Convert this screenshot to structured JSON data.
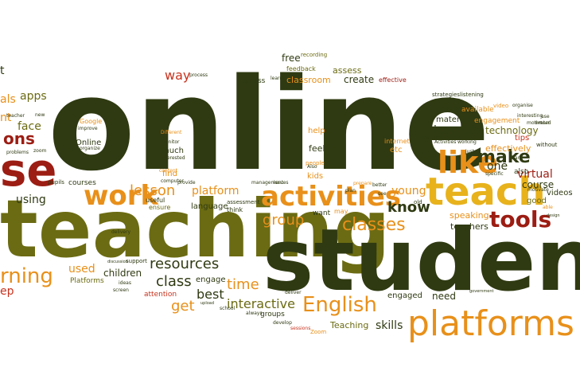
{
  "colors": {
    "dark_olive": "#2f3a12",
    "olive": "#6b6b13",
    "orange": "#e8901a",
    "gold": "#e7b21c",
    "dark_red": "#9c1d13",
    "red": "#c8321d"
  },
  "words": [
    {
      "text": "online",
      "color": "dark_olive"
    },
    {
      "text": "teaching",
      "color": "olive"
    },
    {
      "text": "students",
      "color": "dark_olive"
    },
    {
      "text": "teach",
      "color": "gold"
    },
    {
      "text": "platforms",
      "color": "orange"
    },
    {
      "text": "activities",
      "color": "orange"
    },
    {
      "text": "work",
      "color": "orange"
    },
    {
      "text": "like",
      "color": "orange"
    },
    {
      "text": "tools",
      "color": "dark_red"
    },
    {
      "text": "se",
      "color": "dark_red"
    },
    {
      "text": "ons",
      "color": "dark_red"
    },
    {
      "text": "English",
      "color": "orange"
    },
    {
      "text": "rning",
      "color": "orange"
    },
    {
      "text": "make",
      "color": "dark_olive"
    },
    {
      "text": "classes",
      "color": "orange"
    },
    {
      "text": "lesson",
      "color": "orange"
    },
    {
      "text": "group",
      "color": "orange"
    },
    {
      "text": "know",
      "color": "dark_olive"
    },
    {
      "text": "resources",
      "color": "dark_olive"
    },
    {
      "text": "interactive",
      "color": "olive"
    },
    {
      "text": "class",
      "color": "dark_olive"
    },
    {
      "text": "time",
      "color": "orange"
    },
    {
      "text": "best",
      "color": "dark_olive"
    },
    {
      "text": "get",
      "color": "orange"
    },
    {
      "text": "platform",
      "color": "orange"
    },
    {
      "text": "learners",
      "color": "dark_olive"
    },
    {
      "text": "technology",
      "color": "olive"
    },
    {
      "text": "effectively",
      "color": "orange"
    },
    {
      "text": "course",
      "color": "dark_olive"
    },
    {
      "text": "virtual",
      "color": "dark_red"
    },
    {
      "text": "young",
      "color": "orange"
    },
    {
      "text": "speaking",
      "color": "orange"
    },
    {
      "text": "teachers",
      "color": "dark_olive"
    },
    {
      "text": "skills",
      "color": "dark_olive"
    },
    {
      "text": "Teaching",
      "color": "olive"
    },
    {
      "text": "engaged",
      "color": "dark_olive"
    },
    {
      "text": "need",
      "color": "dark_olive"
    },
    {
      "text": "groups",
      "color": "dark_olive"
    },
    {
      "text": "used",
      "color": "orange"
    },
    {
      "text": "children",
      "color": "dark_olive"
    },
    {
      "text": "engage",
      "color": "dark_olive"
    },
    {
      "text": "attention",
      "color": "red"
    },
    {
      "text": "Platforms",
      "color": "olive"
    },
    {
      "text": "face",
      "color": "olive"
    },
    {
      "text": "apps",
      "color": "olive"
    },
    {
      "text": "nt",
      "color": "orange"
    },
    {
      "text": "als",
      "color": "orange"
    },
    {
      "text": "using",
      "color": "dark_olive"
    },
    {
      "text": "courses",
      "color": "dark_olive"
    },
    {
      "text": "language",
      "color": "dark_olive"
    },
    {
      "text": "find",
      "color": "orange"
    },
    {
      "text": "much",
      "color": "dark_olive"
    },
    {
      "text": "help",
      "color": "orange"
    },
    {
      "text": "feel",
      "color": "dark_olive"
    },
    {
      "text": "kids",
      "color": "orange"
    },
    {
      "text": "etc",
      "color": "orange"
    },
    {
      "text": "internet",
      "color": "orange"
    },
    {
      "text": "material",
      "color": "dark_olive"
    },
    {
      "text": "one",
      "color": "dark_olive"
    },
    {
      "text": "possible",
      "color": "dark_olive"
    },
    {
      "text": "available",
      "color": "orange"
    },
    {
      "text": "engagement",
      "color": "orange"
    },
    {
      "text": "tips",
      "color": "red"
    },
    {
      "text": "way",
      "color": "red"
    },
    {
      "text": "free",
      "color": "dark_olive"
    },
    {
      "text": "assess",
      "color": "olive"
    },
    {
      "text": "create",
      "color": "dark_olive"
    },
    {
      "text": "classroom",
      "color": "orange"
    },
    {
      "text": "access",
      "color": "dark_olive"
    },
    {
      "text": "feedback",
      "color": "olive"
    },
    {
      "text": "effective",
      "color": "dark_red"
    },
    {
      "text": "strategies",
      "color": "dark_olive"
    },
    {
      "text": "listening",
      "color": "dark_olive"
    },
    {
      "text": "Online",
      "color": "dark_olive"
    },
    {
      "text": "Google",
      "color": "orange"
    },
    {
      "text": "want",
      "color": "dark_olive"
    },
    {
      "text": "may",
      "color": "orange"
    },
    {
      "text": "good",
      "color": "olive"
    },
    {
      "text": "also",
      "color": "dark_olive"
    },
    {
      "text": "videos",
      "color": "dark_olive"
    },
    {
      "text": "Zoom",
      "color": "orange"
    },
    {
      "text": "think",
      "color": "dark_olive"
    },
    {
      "text": "assessment",
      "color": "dark_olive"
    },
    {
      "text": "useful",
      "color": "dark_olive"
    },
    {
      "text": "ensure",
      "color": "olive"
    },
    {
      "text": "pupils",
      "color": "dark_olive"
    },
    {
      "text": "support",
      "color": "dark_olive"
    },
    {
      "text": "well",
      "color": "dark_olive"
    },
    {
      "text": "recording",
      "color": "olive"
    },
    {
      "text": "learn",
      "color": "dark_olive"
    },
    {
      "text": "process",
      "color": "dark_olive"
    },
    {
      "text": "teacher",
      "color": "dark_olive"
    },
    {
      "text": "zoom",
      "color": "dark_olive"
    },
    {
      "text": "problems",
      "color": "dark_olive"
    },
    {
      "text": "improve",
      "color": "dark_olive"
    },
    {
      "text": "Different",
      "color": "orange"
    },
    {
      "text": "monitor",
      "color": "dark_olive"
    },
    {
      "text": "interested",
      "color": "dark_olive"
    },
    {
      "text": "computer",
      "color": "dark_olive"
    },
    {
      "text": "organize",
      "color": "dark_olive"
    },
    {
      "text": "issues",
      "color": "dark_olive"
    },
    {
      "text": "management",
      "color": "dark_olive"
    },
    {
      "text": "people",
      "color": "orange"
    },
    {
      "text": "Activities",
      "color": "dark_olive"
    },
    {
      "text": "working",
      "color": "dark_olive"
    },
    {
      "text": "features",
      "color": "dark_olive"
    },
    {
      "text": "share",
      "color": "dark_olive"
    },
    {
      "text": "interesting",
      "color": "dark_olive"
    },
    {
      "text": "motivated",
      "color": "dark_olive"
    },
    {
      "text": "without",
      "color": "dark_olive"
    },
    {
      "text": "specific",
      "color": "dark_olive"
    },
    {
      "text": "design",
      "color": "dark_olive"
    },
    {
      "text": "able",
      "color": "orange"
    },
    {
      "text": "difficult",
      "color": "dark_olive"
    },
    {
      "text": "delivery",
      "color": "dark_olive"
    },
    {
      "text": "ideas",
      "color": "dark_olive"
    },
    {
      "text": "screen",
      "color": "dark_olive"
    },
    {
      "text": "school",
      "color": "dark_olive"
    },
    {
      "text": "develop",
      "color": "dark_olive"
    },
    {
      "text": "sessions",
      "color": "red"
    },
    {
      "text": "deliver",
      "color": "dark_olive"
    },
    {
      "text": "always",
      "color": "dark_olive"
    },
    {
      "text": "upload",
      "color": "dark_olive"
    },
    {
      "text": "government",
      "color": "dark_olive"
    },
    {
      "text": "discussion",
      "color": "dark_olive"
    },
    {
      "text": "ep",
      "color": "red"
    },
    {
      "text": "t",
      "color": "dark_olive"
    },
    {
      "text": "better",
      "color": "dark_olive"
    },
    {
      "text": "Also",
      "color": "dark_olive"
    },
    {
      "text": "old",
      "color": "dark_olive"
    },
    {
      "text": "just",
      "color": "dark_olive"
    },
    {
      "text": "video",
      "color": "orange"
    },
    {
      "text": "organise",
      "color": "dark_olive"
    },
    {
      "text": "motivate",
      "color": "dark_olive"
    },
    {
      "text": "content",
      "color": "orange"
    },
    {
      "text": "prepare",
      "color": "orange"
    },
    {
      "text": "provide",
      "color": "dark_olive"
    },
    {
      "text": "plan",
      "color": "dark_olive"
    },
    {
      "text": "use",
      "color": "dark_olive"
    },
    {
      "text": "new",
      "color": "dark_olive"
    },
    {
      "text": "see",
      "color": "dark_olive"
    }
  ]
}
